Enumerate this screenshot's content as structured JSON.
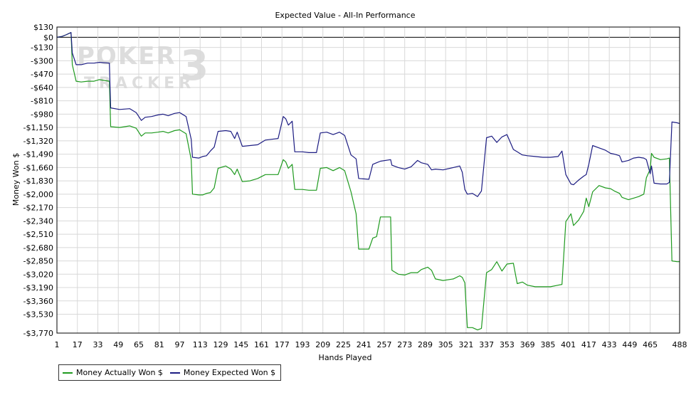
{
  "chart_data": {
    "type": "line",
    "title": "Expected Value - All-In Performance",
    "xlabel": "Hands Played",
    "ylabel": "Money Won $",
    "xlim": [
      1,
      488
    ],
    "ylim": [
      -3770,
      130
    ],
    "x_ticks": [
      1,
      17,
      33,
      49,
      65,
      81,
      97,
      113,
      129,
      145,
      161,
      177,
      193,
      209,
      225,
      241,
      257,
      273,
      289,
      305,
      321,
      337,
      353,
      369,
      385,
      401,
      417,
      433,
      449,
      465,
      488
    ],
    "y_ticks": [
      130,
      0,
      -130,
      -300,
      -470,
      -640,
      -810,
      -980,
      -1150,
      -1320,
      -1490,
      -1660,
      -1830,
      -2000,
      -2170,
      -2340,
      -2510,
      -2680,
      -2850,
      -3020,
      -3190,
      -3360,
      -3530,
      -3770
    ],
    "y_tick_labels": [
      "$130",
      "$0",
      "-$130",
      "-$300",
      "-$470",
      "-$640",
      "-$810",
      "-$980",
      "-$1,150",
      "-$1,320",
      "-$1,490",
      "-$1,660",
      "-$1,830",
      "-$2,000",
      "-$2,170",
      "-$2,340",
      "-$2,510",
      "-$2,680",
      "-$2,850",
      "-$3,020",
      "-$3,190",
      "-$3,360",
      "-$3,530",
      "-$3,770"
    ],
    "grid": true,
    "legend_position": "bottom-left",
    "series": [
      {
        "name": "Money Actually Won $",
        "color": "#1f9a1f",
        "points": [
          [
            1,
            0
          ],
          [
            5,
            10
          ],
          [
            8,
            30
          ],
          [
            12,
            60
          ],
          [
            13,
            -350
          ],
          [
            16,
            -560
          ],
          [
            20,
            -570
          ],
          [
            25,
            -560
          ],
          [
            30,
            -560
          ],
          [
            34,
            -540
          ],
          [
            42,
            -560
          ],
          [
            43,
            -1140
          ],
          [
            50,
            -1150
          ],
          [
            58,
            -1130
          ],
          [
            63,
            -1160
          ],
          [
            67,
            -1260
          ],
          [
            70,
            -1220
          ],
          [
            75,
            -1220
          ],
          [
            80,
            -1210
          ],
          [
            84,
            -1200
          ],
          [
            88,
            -1220
          ],
          [
            93,
            -1190
          ],
          [
            97,
            -1180
          ],
          [
            102,
            -1230
          ],
          [
            106,
            -1560
          ],
          [
            107,
            -2000
          ],
          [
            112,
            -2010
          ],
          [
            115,
            -2010
          ],
          [
            118,
            -1990
          ],
          [
            121,
            -1980
          ],
          [
            124,
            -1920
          ],
          [
            127,
            -1670
          ],
          [
            133,
            -1640
          ],
          [
            137,
            -1680
          ],
          [
            140,
            -1750
          ],
          [
            142,
            -1680
          ],
          [
            146,
            -1840
          ],
          [
            152,
            -1830
          ],
          [
            158,
            -1800
          ],
          [
            164,
            -1750
          ],
          [
            169,
            -1750
          ],
          [
            174,
            -1750
          ],
          [
            178,
            -1560
          ],
          [
            180,
            -1590
          ],
          [
            182,
            -1670
          ],
          [
            185,
            -1620
          ],
          [
            187,
            -1940
          ],
          [
            193,
            -1940
          ],
          [
            198,
            -1950
          ],
          [
            204,
            -1950
          ],
          [
            207,
            -1670
          ],
          [
            212,
            -1660
          ],
          [
            217,
            -1700
          ],
          [
            222,
            -1660
          ],
          [
            226,
            -1700
          ],
          [
            231,
            -1970
          ],
          [
            235,
            -2250
          ],
          [
            237,
            -2700
          ],
          [
            245,
            -2700
          ],
          [
            248,
            -2560
          ],
          [
            251,
            -2540
          ],
          [
            254,
            -2290
          ],
          [
            262,
            -2290
          ],
          [
            263,
            -2970
          ],
          [
            268,
            -3020
          ],
          [
            273,
            -3030
          ],
          [
            278,
            -3000
          ],
          [
            283,
            -3000
          ],
          [
            286,
            -2960
          ],
          [
            291,
            -2930
          ],
          [
            294,
            -2970
          ],
          [
            297,
            -3080
          ],
          [
            303,
            -3100
          ],
          [
            311,
            -3080
          ],
          [
            316,
            -3040
          ],
          [
            318,
            -3060
          ],
          [
            320,
            -3130
          ],
          [
            322,
            -3700
          ],
          [
            326,
            -3700
          ],
          [
            330,
            -3730
          ],
          [
            333,
            -3710
          ],
          [
            337,
            -3000
          ],
          [
            341,
            -2960
          ],
          [
            345,
            -2860
          ],
          [
            349,
            -2980
          ],
          [
            353,
            -2890
          ],
          [
            358,
            -2880
          ],
          [
            361,
            -3140
          ],
          [
            365,
            -3120
          ],
          [
            369,
            -3160
          ],
          [
            375,
            -3180
          ],
          [
            381,
            -3180
          ],
          [
            387,
            -3180
          ],
          [
            393,
            -3160
          ],
          [
            396,
            -3150
          ],
          [
            399,
            -2350
          ],
          [
            403,
            -2250
          ],
          [
            405,
            -2400
          ],
          [
            409,
            -2330
          ],
          [
            413,
            -2220
          ],
          [
            415,
            -2050
          ],
          [
            417,
            -2160
          ],
          [
            420,
            -1970
          ],
          [
            425,
            -1890
          ],
          [
            430,
            -1920
          ],
          [
            434,
            -1930
          ],
          [
            437,
            -1960
          ],
          [
            441,
            -1990
          ],
          [
            443,
            -2040
          ],
          [
            448,
            -2070
          ],
          [
            452,
            -2050
          ],
          [
            456,
            -2030
          ],
          [
            460,
            -2000
          ],
          [
            462,
            -1790
          ],
          [
            465,
            -1680
          ],
          [
            466,
            -1480
          ],
          [
            468,
            -1530
          ],
          [
            473,
            -1560
          ],
          [
            478,
            -1550
          ],
          [
            480,
            -1540
          ],
          [
            482,
            -2850
          ],
          [
            486,
            -2860
          ],
          [
            488,
            -2860
          ]
        ]
      },
      {
        "name": "Money Expected Won $",
        "color": "#1c1c82",
        "points": [
          [
            1,
            0
          ],
          [
            5,
            10
          ],
          [
            8,
            30
          ],
          [
            12,
            60
          ],
          [
            13,
            -200
          ],
          [
            16,
            -350
          ],
          [
            20,
            -350
          ],
          [
            25,
            -330
          ],
          [
            30,
            -330
          ],
          [
            34,
            -320
          ],
          [
            42,
            -330
          ],
          [
            43,
            -900
          ],
          [
            50,
            -920
          ],
          [
            58,
            -910
          ],
          [
            63,
            -960
          ],
          [
            67,
            -1060
          ],
          [
            70,
            -1020
          ],
          [
            75,
            -1010
          ],
          [
            80,
            -990
          ],
          [
            84,
            -980
          ],
          [
            88,
            -1000
          ],
          [
            93,
            -970
          ],
          [
            97,
            -960
          ],
          [
            102,
            -1010
          ],
          [
            106,
            -1300
          ],
          [
            107,
            -1530
          ],
          [
            112,
            -1540
          ],
          [
            115,
            -1520
          ],
          [
            118,
            -1510
          ],
          [
            121,
            -1450
          ],
          [
            124,
            -1400
          ],
          [
            127,
            -1200
          ],
          [
            133,
            -1190
          ],
          [
            137,
            -1200
          ],
          [
            140,
            -1290
          ],
          [
            142,
            -1210
          ],
          [
            146,
            -1390
          ],
          [
            152,
            -1380
          ],
          [
            158,
            -1370
          ],
          [
            164,
            -1310
          ],
          [
            169,
            -1300
          ],
          [
            174,
            -1290
          ],
          [
            178,
            -1010
          ],
          [
            180,
            -1040
          ],
          [
            182,
            -1120
          ],
          [
            185,
            -1070
          ],
          [
            187,
            -1460
          ],
          [
            193,
            -1460
          ],
          [
            198,
            -1470
          ],
          [
            204,
            -1470
          ],
          [
            207,
            -1220
          ],
          [
            212,
            -1210
          ],
          [
            217,
            -1240
          ],
          [
            222,
            -1210
          ],
          [
            226,
            -1250
          ],
          [
            231,
            -1500
          ],
          [
            235,
            -1550
          ],
          [
            237,
            -1800
          ],
          [
            245,
            -1810
          ],
          [
            248,
            -1620
          ],
          [
            251,
            -1600
          ],
          [
            254,
            -1580
          ],
          [
            262,
            -1560
          ],
          [
            263,
            -1630
          ],
          [
            268,
            -1660
          ],
          [
            273,
            -1680
          ],
          [
            278,
            -1650
          ],
          [
            283,
            -1570
          ],
          [
            286,
            -1600
          ],
          [
            291,
            -1620
          ],
          [
            294,
            -1690
          ],
          [
            297,
            -1680
          ],
          [
            303,
            -1690
          ],
          [
            311,
            -1660
          ],
          [
            316,
            -1640
          ],
          [
            318,
            -1720
          ],
          [
            320,
            -1940
          ],
          [
            322,
            -2000
          ],
          [
            326,
            -1990
          ],
          [
            330,
            -2030
          ],
          [
            333,
            -1960
          ],
          [
            337,
            -1280
          ],
          [
            341,
            -1260
          ],
          [
            345,
            -1340
          ],
          [
            349,
            -1270
          ],
          [
            353,
            -1240
          ],
          [
            358,
            -1430
          ],
          [
            361,
            -1460
          ],
          [
            365,
            -1500
          ],
          [
            369,
            -1510
          ],
          [
            375,
            -1520
          ],
          [
            381,
            -1530
          ],
          [
            387,
            -1530
          ],
          [
            393,
            -1520
          ],
          [
            396,
            -1450
          ],
          [
            399,
            -1750
          ],
          [
            403,
            -1870
          ],
          [
            405,
            -1880
          ],
          [
            409,
            -1820
          ],
          [
            413,
            -1770
          ],
          [
            415,
            -1750
          ],
          [
            417,
            -1620
          ],
          [
            420,
            -1380
          ],
          [
            425,
            -1410
          ],
          [
            430,
            -1440
          ],
          [
            434,
            -1480
          ],
          [
            437,
            -1490
          ],
          [
            441,
            -1510
          ],
          [
            443,
            -1590
          ],
          [
            448,
            -1570
          ],
          [
            452,
            -1540
          ],
          [
            456,
            -1530
          ],
          [
            460,
            -1540
          ],
          [
            462,
            -1560
          ],
          [
            465,
            -1740
          ],
          [
            466,
            -1640
          ],
          [
            468,
            -1860
          ],
          [
            473,
            -1870
          ],
          [
            478,
            -1870
          ],
          [
            480,
            -1850
          ],
          [
            482,
            -1080
          ],
          [
            486,
            -1090
          ],
          [
            488,
            -1100
          ]
        ]
      }
    ]
  },
  "watermark": {
    "line1": "POKER",
    "digit": "3",
    "line2": "TRACKER"
  }
}
